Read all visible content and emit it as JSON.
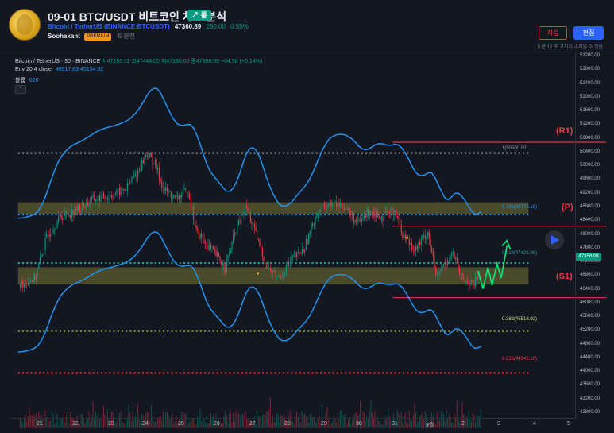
{
  "header": {
    "title": "09-01 BTC/USDT 비트코인 차트 분석",
    "badge": "↗ 롱",
    "symbol": "Bitcoin / TetherUS (BINANCE:BTCUSDT)",
    "price": "47360.89",
    "change": "260.00",
    "change_pct": "0.55%",
    "author": "Soohakant",
    "author_badge": "PREMIUM",
    "posted": "5 분전",
    "delete_label": "지움",
    "edit_label": "편집",
    "edit_note": "9 분 12 초 고치거나 지울 수 있음"
  },
  "legend": {
    "symbol": "Bitcoin / TetherUS · 30 · BINANCE",
    "ohlc": "시47293.11  고47444.00  저47180.00  종47358.08  +64.98 (+0.14%)",
    "env_label": "Env 20 4 close",
    "env_values": "48917.83  45154.92",
    "vol_label": "볼륨",
    "vol_value": "620",
    "collapse": "⌃"
  },
  "price_axis": {
    "ticks": [
      "53200.00",
      "52800.00",
      "52400.00",
      "52000.00",
      "51600.00",
      "51200.00",
      "50800.00",
      "50400.00",
      "50000.00",
      "49600.00",
      "49200.00",
      "48800.00",
      "48400.00",
      "48000.00",
      "47600.00",
      "47200.00",
      "46800.00",
      "46400.00",
      "46000.00",
      "45600.00",
      "45200.00",
      "44800.00",
      "44400.00",
      "44000.00",
      "43600.00",
      "43200.00",
      "42800.00"
    ],
    "current": "47358.08",
    "current_sub": "08:19"
  },
  "time_axis": {
    "ticks": [
      "21",
      "22",
      "23",
      "24",
      "25",
      "26",
      "27",
      "28",
      "29",
      "30",
      "31",
      "9월",
      "2",
      "3",
      "4",
      "5"
    ]
  },
  "fib": [
    {
      "label": "1(50500.00)",
      "price": 50500,
      "color": "#9598a1"
    },
    {
      "label": "0.786(48775.16)",
      "price": 48775.16,
      "color": "#2196f3"
    },
    {
      "label": "0.618(47421.08)",
      "price": 47421.08,
      "color": "#26a69a"
    },
    {
      "label": "0.382(45518.92)",
      "price": 45518.92,
      "color": "#c0e67a"
    },
    {
      "label": "0.236(44342.16)",
      "price": 44342.16,
      "color": "#f23645"
    }
  ],
  "levels": {
    "r1": "(R1)",
    "p": "(P)",
    "s1": "(S1)"
  },
  "colors": {
    "up": "#089981",
    "down": "#f23645",
    "envelope": "#2196f3",
    "zone": "#5b5a35",
    "accent": "#2962ff"
  }
}
